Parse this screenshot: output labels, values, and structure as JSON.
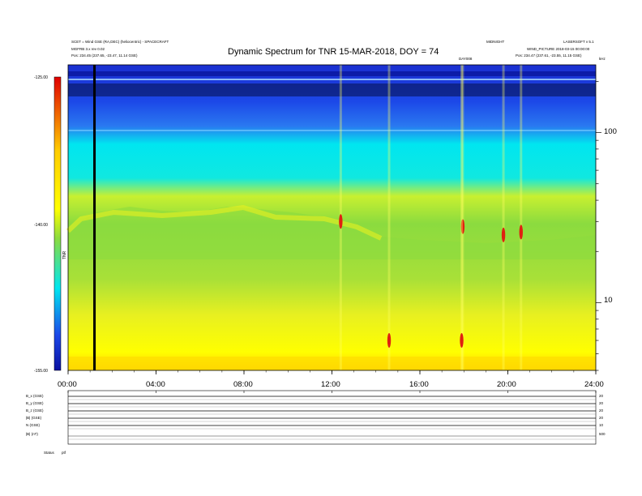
{
  "header": {
    "title": "Dynamic Spectrum for TNR 15-MAR-2018, DOY = 74",
    "top_left_1": "SCET = Wind GSE (RA,DEC) (heliocentric) - SPACECRAFT",
    "top_left_2": "MGFRB 3.x rev 0.02",
    "top_left_3": "Pos:   234.45 (237.65, -23.47, 11.14 GSE)",
    "top_right_1": "MIDNIGHT",
    "top_right_2": "LASERSOFT v 5.1",
    "top_right_3": "WIND_PICTURE 2018-03-15 00:00:00",
    "top_right_4": "Pos:   234.47 (237.61, -23.55, 11.15 GSE)",
    "event_label": "DAY008",
    "corner_label": "kHz"
  },
  "colorbar": {
    "ticks": [
      "-125.00",
      "-140.00",
      "-155.00"
    ],
    "label": "TNR"
  },
  "bottom_panel": {
    "left_labels": [
      "B_x (GSE)",
      "B_y (GSE)",
      "B_z (GSE)",
      "|B| (GSE)",
      "N (GSE)",
      "|B| (nT)"
    ],
    "right_labels": [
      "20",
      "20",
      "20",
      "20",
      "10",
      "500"
    ],
    "footer_left": "Status",
    "footer_right": "ptf"
  },
  "colors": {
    "background": "#ffffff",
    "low": "#ffff00",
    "mid": "#8bdb3f",
    "high": "#00e6f0",
    "top": "#1530d8",
    "burst": "#e02010"
  },
  "chart_data": {
    "type": "heatmap",
    "title": "Dynamic Spectrum for TNR 15-MAR-2018, DOY = 74",
    "xlabel": "",
    "ylabel": "kHz",
    "x_ticks": [
      "00:00",
      "04:00",
      "08:00",
      "12:00",
      "16:00",
      "20:00",
      "24:00"
    ],
    "x_range_hours": [
      0,
      24
    ],
    "y_scale": "log",
    "y_ticks": [
      10,
      100
    ],
    "y_range_khz": [
      4,
      250
    ],
    "color_scale": [
      "#ffff00",
      "#8bdb3f",
      "#00e6f0",
      "#1530d8"
    ],
    "color_ticks": [
      -125,
      -140,
      -155
    ],
    "data_gap_hour": 1.2,
    "radio_bursts": [
      {
        "hour": 12.4,
        "freq_khz": 30
      },
      {
        "hour": 17.95,
        "freq_khz": 28
      },
      {
        "hour": 19.8,
        "freq_khz": 25
      },
      {
        "hour": 20.6,
        "freq_khz": 26
      },
      {
        "hour": 14.6,
        "freq_khz": 6
      },
      {
        "hour": 17.9,
        "freq_khz": 6
      }
    ]
  }
}
